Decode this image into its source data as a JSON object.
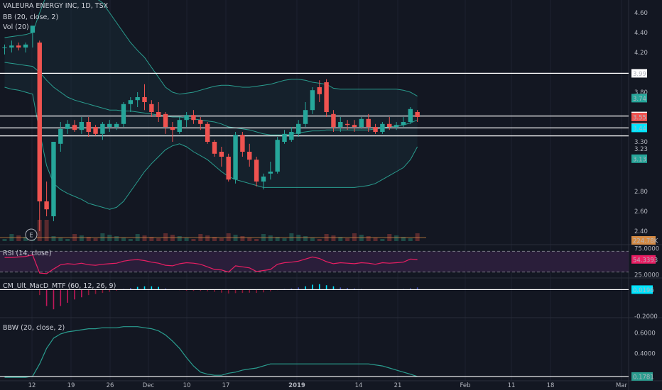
{
  "header": {
    "symbol_line": "VALEURA ENERGY INC, 1D, TSX",
    "bb_label": "BB (20, close, 2)",
    "vol_label": "Vol (20)",
    "earnings_marker": "E"
  },
  "panes": {
    "rsi_label": "RSI (14, close)",
    "macd_label": "CM_Ult_MacD_MTF (60, 12, 26, 9)",
    "bbw_label": "BBW (20, close, 2)"
  },
  "colors": {
    "background": "#131722",
    "up": "#26a69a",
    "down": "#ef5350",
    "bb_band": "#2a9d8f",
    "rsi_line": "#e91e63",
    "rsi_fill": "#2a1e3a",
    "hline": "#ffffff"
  },
  "chart_data": [
    {
      "type": "candlestick",
      "title": "VALEURA ENERGY INC, 1D, TSX",
      "x_axis_ticks": [
        "12",
        "19",
        "26",
        "Dec",
        "10",
        "17",
        "2019",
        "14",
        "21",
        "Feb",
        "11",
        "18",
        "Mar"
      ],
      "y_axis_ticks": [
        "4.60",
        "4.40",
        "4.20",
        "3.80",
        "3.30",
        "3.23",
        "2.80",
        "2.60",
        "2.40"
      ],
      "ylim": [
        2.3,
        4.7
      ],
      "horizontal_lines": [
        3.99,
        3.56,
        3.44,
        3.36
      ],
      "price_tags": [
        {
          "text": "3.99",
          "value": 3.99,
          "style": "white"
        },
        {
          "text": "3.74",
          "value": 3.74,
          "style": "green"
        },
        {
          "text": "3.56",
          "value": 3.56,
          "style": "white"
        },
        {
          "text": "3.55",
          "value": 3.55,
          "style": "red"
        },
        {
          "text": "3.45",
          "value": 3.45,
          "style": "red"
        },
        {
          "text": "3.44",
          "value": 3.44,
          "style": "cyan"
        },
        {
          "text": "3.13",
          "value": 3.13,
          "style": "green"
        }
      ],
      "volume_tag": "224.78K",
      "candles": [
        {
          "o": 4.25,
          "h": 4.28,
          "l": 4.18,
          "c": 4.25
        },
        {
          "o": 4.25,
          "h": 4.32,
          "l": 4.2,
          "c": 4.27
        },
        {
          "o": 4.27,
          "h": 4.3,
          "l": 4.22,
          "c": 4.25
        },
        {
          "o": 4.25,
          "h": 4.3,
          "l": 4.2,
          "c": 4.28
        },
        {
          "o": 4.4,
          "h": 4.45,
          "l": 4.25,
          "c": 4.47
        },
        {
          "o": 4.3,
          "h": 4.32,
          "l": 2.4,
          "c": 2.7
        },
        {
          "o": 2.7,
          "h": 2.9,
          "l": 2.55,
          "c": 2.62
        },
        {
          "o": 2.55,
          "h": 3.3,
          "l": 2.5,
          "c": 3.3
        },
        {
          "o": 3.28,
          "h": 3.5,
          "l": 3.2,
          "c": 3.43
        },
        {
          "o": 3.43,
          "h": 3.52,
          "l": 3.38,
          "c": 3.48
        },
        {
          "o": 3.47,
          "h": 3.52,
          "l": 3.4,
          "c": 3.42
        },
        {
          "o": 3.42,
          "h": 3.55,
          "l": 3.38,
          "c": 3.5
        },
        {
          "o": 3.5,
          "h": 3.55,
          "l": 3.35,
          "c": 3.4
        },
        {
          "o": 3.45,
          "h": 3.47,
          "l": 3.36,
          "c": 3.38
        },
        {
          "o": 3.38,
          "h": 3.5,
          "l": 3.32,
          "c": 3.48
        },
        {
          "o": 3.45,
          "h": 3.52,
          "l": 3.4,
          "c": 3.48
        },
        {
          "o": 3.45,
          "h": 3.5,
          "l": 3.42,
          "c": 3.48
        },
        {
          "o": 3.48,
          "h": 3.7,
          "l": 3.45,
          "c": 3.68
        },
        {
          "o": 3.68,
          "h": 3.75,
          "l": 3.6,
          "c": 3.72
        },
        {
          "o": 3.72,
          "h": 3.8,
          "l": 3.65,
          "c": 3.75
        },
        {
          "o": 3.75,
          "h": 3.88,
          "l": 3.62,
          "c": 3.7
        },
        {
          "o": 3.68,
          "h": 3.72,
          "l": 3.55,
          "c": 3.6
        },
        {
          "o": 3.6,
          "h": 3.7,
          "l": 3.5,
          "c": 3.55
        },
        {
          "o": 3.58,
          "h": 3.6,
          "l": 3.38,
          "c": 3.45
        },
        {
          "o": 3.45,
          "h": 3.5,
          "l": 3.3,
          "c": 3.42
        },
        {
          "o": 3.4,
          "h": 3.55,
          "l": 3.38,
          "c": 3.52
        },
        {
          "o": 3.52,
          "h": 3.6,
          "l": 3.45,
          "c": 3.57
        },
        {
          "o": 3.57,
          "h": 3.62,
          "l": 3.48,
          "c": 3.52
        },
        {
          "o": 3.52,
          "h": 3.55,
          "l": 3.42,
          "c": 3.48
        },
        {
          "o": 3.48,
          "h": 3.5,
          "l": 3.28,
          "c": 3.3
        },
        {
          "o": 3.3,
          "h": 3.32,
          "l": 3.15,
          "c": 3.18
        },
        {
          "o": 3.2,
          "h": 3.25,
          "l": 3.05,
          "c": 3.15
        },
        {
          "o": 3.15,
          "h": 3.18,
          "l": 2.9,
          "c": 2.92
        },
        {
          "o": 2.92,
          "h": 3.4,
          "l": 2.88,
          "c": 3.37
        },
        {
          "o": 3.37,
          "h": 3.4,
          "l": 3.15,
          "c": 3.2
        },
        {
          "o": 3.2,
          "h": 3.28,
          "l": 3.05,
          "c": 3.12
        },
        {
          "o": 3.12,
          "h": 3.15,
          "l": 2.85,
          "c": 2.9
        },
        {
          "o": 2.9,
          "h": 2.98,
          "l": 2.82,
          "c": 2.95
        },
        {
          "o": 2.98,
          "h": 3.1,
          "l": 2.92,
          "c": 3.0
        },
        {
          "o": 3.0,
          "h": 3.35,
          "l": 2.98,
          "c": 3.32
        },
        {
          "o": 3.3,
          "h": 3.42,
          "l": 3.28,
          "c": 3.38
        },
        {
          "o": 3.32,
          "h": 3.45,
          "l": 3.3,
          "c": 3.4
        },
        {
          "o": 3.38,
          "h": 3.52,
          "l": 3.35,
          "c": 3.48
        },
        {
          "o": 3.48,
          "h": 3.7,
          "l": 3.45,
          "c": 3.62
        },
        {
          "o": 3.62,
          "h": 3.85,
          "l": 3.58,
          "c": 3.82
        },
        {
          "o": 3.85,
          "h": 3.92,
          "l": 3.7,
          "c": 3.78
        },
        {
          "o": 3.9,
          "h": 3.93,
          "l": 3.55,
          "c": 3.6
        },
        {
          "o": 3.58,
          "h": 3.62,
          "l": 3.4,
          "c": 3.45
        },
        {
          "o": 3.45,
          "h": 3.55,
          "l": 3.4,
          "c": 3.5
        },
        {
          "o": 3.48,
          "h": 3.52,
          "l": 3.42,
          "c": 3.47
        },
        {
          "o": 3.47,
          "h": 3.52,
          "l": 3.4,
          "c": 3.45
        },
        {
          "o": 3.45,
          "h": 3.55,
          "l": 3.43,
          "c": 3.53
        },
        {
          "o": 3.53,
          "h": 3.58,
          "l": 3.4,
          "c": 3.45
        },
        {
          "o": 3.45,
          "h": 3.48,
          "l": 3.38,
          "c": 3.4
        },
        {
          "o": 3.4,
          "h": 3.5,
          "l": 3.38,
          "c": 3.48
        },
        {
          "o": 3.48,
          "h": 3.55,
          "l": 3.42,
          "c": 3.45
        },
        {
          "o": 3.45,
          "h": 3.5,
          "l": 3.42,
          "c": 3.47
        },
        {
          "o": 3.47,
          "h": 3.55,
          "l": 3.45,
          "c": 3.5
        },
        {
          "o": 3.5,
          "h": 3.65,
          "l": 3.48,
          "c": 3.63
        },
        {
          "o": 3.6,
          "h": 3.62,
          "l": 3.5,
          "c": 3.55
        }
      ],
      "bb_mid": [
        4.1,
        4.09,
        4.08,
        4.07,
        4.06,
        4.0,
        3.92,
        3.85,
        3.8,
        3.75,
        3.72,
        3.7,
        3.68,
        3.66,
        3.64,
        3.62,
        3.62,
        3.61,
        3.61,
        3.6,
        3.59,
        3.58,
        3.57,
        3.56,
        3.55,
        3.55,
        3.54,
        3.53,
        3.52,
        3.51,
        3.5,
        3.48,
        3.45,
        3.44,
        3.43,
        3.42,
        3.4,
        3.38,
        3.37,
        3.37,
        3.37,
        3.38,
        3.39,
        3.4,
        3.41,
        3.41,
        3.42,
        3.42,
        3.42,
        3.42,
        3.42,
        3.42,
        3.42,
        3.43,
        3.44,
        3.45,
        3.46,
        3.47,
        3.49,
        3.52
      ],
      "bb_upper": [
        4.35,
        4.36,
        4.37,
        4.38,
        4.4,
        4.6,
        4.78,
        4.85,
        4.88,
        4.9,
        4.88,
        4.85,
        4.8,
        4.75,
        4.7,
        4.6,
        4.5,
        4.4,
        4.3,
        4.22,
        4.15,
        4.05,
        3.95,
        3.85,
        3.8,
        3.78,
        3.79,
        3.8,
        3.82,
        3.84,
        3.86,
        3.87,
        3.87,
        3.86,
        3.85,
        3.85,
        3.86,
        3.87,
        3.88,
        3.9,
        3.92,
        3.93,
        3.93,
        3.92,
        3.9,
        3.89,
        3.88,
        3.84,
        3.83,
        3.83,
        3.83,
        3.83,
        3.83,
        3.83,
        3.83,
        3.83,
        3.83,
        3.82,
        3.8,
        3.76
      ],
      "bb_lower": [
        3.85,
        3.83,
        3.82,
        3.8,
        3.78,
        3.4,
        3.06,
        2.88,
        2.82,
        2.78,
        2.75,
        2.72,
        2.68,
        2.66,
        2.64,
        2.62,
        2.64,
        2.7,
        2.8,
        2.9,
        3.0,
        3.08,
        3.15,
        3.22,
        3.26,
        3.28,
        3.25,
        3.2,
        3.16,
        3.12,
        3.06,
        3.0,
        2.95,
        2.92,
        2.9,
        2.88,
        2.86,
        2.84,
        2.84,
        2.84,
        2.84,
        2.84,
        2.84,
        2.84,
        2.84,
        2.84,
        2.84,
        2.84,
        2.84,
        2.84,
        2.84,
        2.85,
        2.86,
        2.88,
        2.92,
        2.96,
        3.0,
        3.04,
        3.12,
        3.25
      ]
    },
    {
      "type": "line",
      "title": "RSI (14, close)",
      "y_axis_ticks": [
        "75.0000",
        "25.0000"
      ],
      "last_value_tag": "54.3393",
      "ylim": [
        20,
        80
      ],
      "bands": [
        70,
        30
      ],
      "values": [
        58,
        58,
        59,
        60,
        63,
        28,
        27,
        36,
        44,
        46,
        45,
        47,
        44,
        43,
        45,
        46,
        47,
        51,
        53,
        54,
        52,
        49,
        47,
        43,
        42,
        46,
        48,
        47,
        45,
        40,
        35,
        34,
        30,
        42,
        40,
        38,
        31,
        33,
        35,
        45,
        48,
        49,
        51,
        55,
        59,
        56,
        50,
        46,
        48,
        47,
        46,
        48,
        47,
        45,
        48,
        47,
        48,
        49,
        55,
        54
      ]
    },
    {
      "type": "bar",
      "title": "CM_Ult_MacD_MTF (60, 12, 26, 9)",
      "y_axis_ticks": [
        "-0.2000"
      ],
      "last_value_tag": "0.0196",
      "ylim": [
        -0.25,
        0.1
      ],
      "values": [
        0,
        0,
        0,
        0,
        0,
        -0.05,
        -0.15,
        -0.18,
        -0.15,
        -0.12,
        -0.09,
        -0.07,
        -0.05,
        -0.04,
        -0.03,
        -0.02,
        -0.01,
        0.005,
        0.015,
        0.025,
        0.03,
        0.03,
        0.025,
        0.01,
        0.0,
        -0.005,
        -0.01,
        -0.012,
        -0.012,
        -0.015,
        -0.02,
        -0.028,
        -0.035,
        -0.032,
        -0.03,
        -0.028,
        -0.03,
        -0.025,
        -0.015,
        -0.005,
        0.005,
        0.01,
        0.02,
        0.03,
        0.045,
        0.05,
        0.04,
        0.03,
        0.02,
        0.015,
        0.01,
        0.005,
        0.0,
        0.0,
        0.0,
        0.0,
        0.0,
        0.005,
        0.012,
        0.02
      ]
    },
    {
      "type": "line",
      "title": "BBW (20, close, 2)",
      "y_axis_ticks": [
        "0.6000",
        "0.4000"
      ],
      "last_value_tag": "0.1781",
      "ylim": [
        0.15,
        0.72
      ],
      "values": [
        0.17,
        0.17,
        0.17,
        0.17,
        0.18,
        0.3,
        0.45,
        0.55,
        0.59,
        0.61,
        0.62,
        0.63,
        0.64,
        0.64,
        0.65,
        0.65,
        0.65,
        0.66,
        0.66,
        0.66,
        0.65,
        0.64,
        0.62,
        0.58,
        0.52,
        0.45,
        0.36,
        0.28,
        0.22,
        0.2,
        0.19,
        0.19,
        0.21,
        0.22,
        0.24,
        0.25,
        0.26,
        0.28,
        0.3,
        0.3,
        0.3,
        0.3,
        0.3,
        0.3,
        0.3,
        0.3,
        0.3,
        0.3,
        0.3,
        0.3,
        0.3,
        0.3,
        0.3,
        0.29,
        0.28,
        0.26,
        0.24,
        0.22,
        0.2,
        0.178
      ]
    }
  ]
}
